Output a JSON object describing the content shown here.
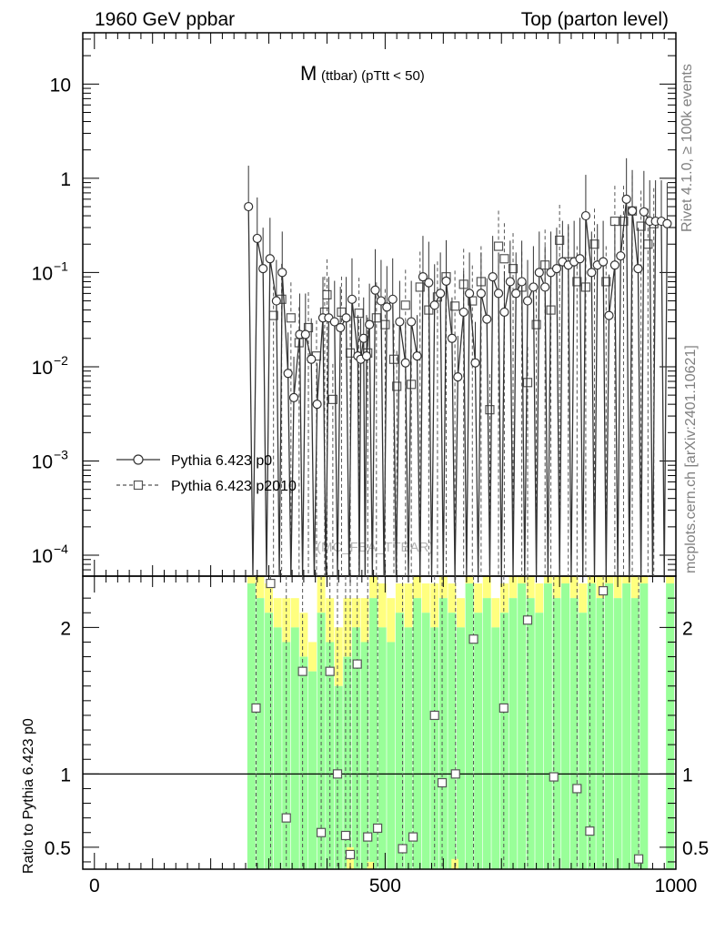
{
  "header": {
    "left": "1960 GeV ppbar",
    "right": "Top (parton level)"
  },
  "side_labels": {
    "rivet": "Rivet 4.1.0, ≥ 100k events",
    "mcplots": "mcplots.cern.ch [arXiv:2401.10621]"
  },
  "chart_data": {
    "type": "line",
    "title_main": "M",
    "title_sub": "(ttbar)  (pTtt < 50)",
    "watermark": "(MC_FBA_TTBAR)",
    "xlim": [
      -20,
      1000
    ],
    "ylim_log": [
      6e-05,
      35
    ],
    "ratio_ylim": [
      0.35,
      2.35
    ],
    "ratio_ylabel": "Ratio to Pythia 6.423 p0",
    "x_ticks": [
      {
        "v": 0,
        "label": "0"
      },
      {
        "v": 500,
        "label": "500"
      },
      {
        "v": 1000,
        "label": "1000"
      }
    ],
    "y_ticks": [
      {
        "v": 10,
        "base": "10",
        "exp": ""
      },
      {
        "v": 1,
        "base": "1",
        "exp": ""
      },
      {
        "v": 0.1,
        "base": "10",
        "exp": "−1"
      },
      {
        "v": 0.01,
        "base": "10",
        "exp": "−2"
      },
      {
        "v": 0.001,
        "base": "10",
        "exp": "−3"
      },
      {
        "v": 0.0001,
        "base": "10",
        "exp": "−4"
      }
    ],
    "ratio_ticks": [
      {
        "v": 2,
        "label": "2"
      },
      {
        "v": 1,
        "label": "1"
      },
      {
        "v": 0.5,
        "label": "0.5"
      }
    ],
    "legend": [
      {
        "name": "Pythia 6.423 p0",
        "marker": "circle",
        "dash": false
      },
      {
        "name": "Pythia 6.423 p2010",
        "marker": "square",
        "dash": true
      }
    ],
    "series": [
      {
        "name": "Pythia 6.423 p0",
        "points": [
          [
            265,
            0.5
          ],
          [
            280,
            0.23
          ],
          [
            290,
            0.11
          ],
          [
            302,
            0.14
          ],
          [
            313,
            0.05
          ],
          [
            323,
            0.1
          ],
          [
            333,
            0.0085
          ],
          [
            343,
            0.0047
          ],
          [
            353,
            0.022
          ],
          [
            363,
            0.022
          ],
          [
            373,
            0.012
          ],
          [
            383,
            0.004
          ],
          [
            393,
            0.033
          ],
          [
            403,
            0.033
          ],
          [
            413,
            0.03
          ],
          [
            423,
            0.026
          ],
          [
            433,
            0.033
          ],
          [
            443,
            0.052
          ],
          [
            453,
            0.013
          ],
          [
            458,
            0.012
          ],
          [
            463,
            0.02
          ],
          [
            468,
            0.013
          ],
          [
            473,
            0.028
          ],
          [
            483,
            0.065
          ],
          [
            493,
            0.05
          ],
          [
            503,
            0.043
          ],
          [
            513,
            0.052
          ],
          [
            525,
            0.03
          ],
          [
            535,
            0.011
          ],
          [
            545,
            0.03
          ],
          [
            555,
            0.013
          ],
          [
            565,
            0.09
          ],
          [
            575,
            0.078
          ],
          [
            585,
            0.045
          ],
          [
            595,
            0.06
          ],
          [
            605,
            0.081
          ],
          [
            615,
            0.02
          ],
          [
            625,
            0.0078
          ],
          [
            635,
            0.038
          ],
          [
            645,
            0.06
          ],
          [
            655,
            0.011
          ],
          [
            665,
            0.06
          ],
          [
            675,
            0.032
          ],
          [
            685,
            0.09
          ],
          [
            695,
            0.06
          ],
          [
            705,
            0.038
          ],
          [
            715,
            0.08
          ],
          [
            725,
            0.06
          ],
          [
            735,
            0.08
          ],
          [
            745,
            0.05
          ],
          [
            755,
            0.07
          ],
          [
            765,
            0.1
          ],
          [
            775,
            0.07
          ],
          [
            785,
            0.1
          ],
          [
            795,
            0.11
          ],
          [
            805,
            0.13
          ],
          [
            815,
            0.12
          ],
          [
            825,
            0.13
          ],
          [
            835,
            0.14
          ],
          [
            845,
            0.4
          ],
          [
            855,
            0.1
          ],
          [
            865,
            0.12
          ],
          [
            875,
            0.13
          ],
          [
            885,
            0.035
          ],
          [
            895,
            0.12
          ],
          [
            905,
            0.15
          ],
          [
            915,
            0.6
          ],
          [
            925,
            0.45
          ],
          [
            935,
            0.11
          ],
          [
            945,
            0.44
          ],
          [
            955,
            0.35
          ],
          [
            965,
            0.35
          ],
          [
            975,
            0.35
          ],
          [
            985,
            0.33
          ]
        ]
      },
      {
        "name": "Pythia 6.423 p2010",
        "points": [
          [
            308,
            0.035
          ],
          [
            322,
            0.052
          ],
          [
            338,
            0.033
          ],
          [
            352,
            0.018
          ],
          [
            368,
            0.026
          ],
          [
            382,
            0.013
          ],
          [
            396,
            0.038
          ],
          [
            400,
            0.058
          ],
          [
            410,
            0.0045
          ],
          [
            425,
            0.038
          ],
          [
            440,
            0.014
          ],
          [
            455,
            0.037
          ],
          [
            470,
            0.014
          ],
          [
            485,
            0.033
          ],
          [
            500,
            0.028
          ],
          [
            515,
            0.012
          ],
          [
            520,
            0.0062
          ],
          [
            535,
            0.045
          ],
          [
            545,
            0.0065
          ],
          [
            560,
            0.07
          ],
          [
            575,
            0.04
          ],
          [
            590,
            0.055
          ],
          [
            605,
            0.09
          ],
          [
            620,
            0.044
          ],
          [
            635,
            0.075
          ],
          [
            650,
            0.05
          ],
          [
            665,
            0.08
          ],
          [
            680,
            0.0035
          ],
          [
            695,
            0.19
          ],
          [
            705,
            0.14
          ],
          [
            720,
            0.11
          ],
          [
            735,
            0.07
          ],
          [
            745,
            0.0068
          ],
          [
            760,
            0.028
          ],
          [
            775,
            0.12
          ],
          [
            785,
            0.04
          ],
          [
            800,
            0.22
          ],
          [
            815,
            0.13
          ],
          [
            830,
            0.08
          ],
          [
            845,
            0.07
          ],
          [
            860,
            0.2
          ],
          [
            880,
            0.08
          ],
          [
            895,
            0.35
          ],
          [
            910,
            0.35
          ],
          [
            925,
            0.45
          ],
          [
            940,
            0.31
          ],
          [
            952,
            0.2
          ],
          [
            962,
            0.33
          ]
        ]
      }
    ],
    "ratio_points": [
      [
        278,
        1.45
      ],
      [
        303,
        2.3
      ],
      [
        330,
        0.7
      ],
      [
        358,
        1.7
      ],
      [
        390,
        0.6
      ],
      [
        405,
        1.7
      ],
      [
        418,
        1.0
      ],
      [
        432,
        0.58
      ],
      [
        440,
        0.45
      ],
      [
        452,
        1.75
      ],
      [
        470,
        0.57
      ],
      [
        487,
        0.63
      ],
      [
        530,
        0.49
      ],
      [
        548,
        0.57
      ],
      [
        585,
        1.4
      ],
      [
        598,
        0.94
      ],
      [
        621,
        1.0
      ],
      [
        652,
        1.92
      ],
      [
        704,
        1.45
      ],
      [
        745,
        2.05
      ],
      [
        790,
        0.98
      ],
      [
        830,
        0.9
      ],
      [
        852,
        0.61
      ],
      [
        875,
        2.25
      ],
      [
        936,
        0.42
      ]
    ],
    "ratio_bands": [
      [
        270,
        2.3,
        0.2
      ],
      [
        285,
        2.2,
        0.2
      ],
      [
        300,
        2.1,
        0.2
      ],
      [
        315,
        2.0,
        0.2
      ],
      [
        330,
        1.9,
        0.3
      ],
      [
        345,
        2.0,
        0.2
      ],
      [
        360,
        1.8,
        0.3
      ],
      [
        375,
        1.7,
        0.2
      ],
      [
        390,
        2.1,
        0.3
      ],
      [
        405,
        1.9,
        0.3
      ],
      [
        420,
        1.6,
        0.4
      ],
      [
        435,
        1.8,
        0.4
      ],
      [
        450,
        2.0,
        0.2
      ],
      [
        465,
        1.9,
        0.3
      ],
      [
        480,
        2.2,
        0.2
      ],
      [
        495,
        2.0,
        0.3
      ],
      [
        510,
        1.9,
        0.3
      ],
      [
        525,
        2.1,
        0.2
      ],
      [
        540,
        2.0,
        0.3
      ],
      [
        555,
        2.2,
        0.2
      ],
      [
        570,
        2.1,
        0.2
      ],
      [
        585,
        2.0,
        0.3
      ],
      [
        600,
        2.2,
        0.2
      ],
      [
        615,
        2.1,
        0.2
      ],
      [
        630,
        2.0,
        0.2
      ],
      [
        645,
        2.3,
        0.2
      ],
      [
        660,
        2.1,
        0.2
      ],
      [
        675,
        2.2,
        0.2
      ],
      [
        690,
        2.0,
        0.2
      ],
      [
        705,
        2.1,
        0.2
      ],
      [
        720,
        2.2,
        0.2
      ],
      [
        735,
        2.3,
        0.1
      ],
      [
        750,
        2.2,
        0.2
      ],
      [
        765,
        2.1,
        0.2
      ],
      [
        780,
        2.3,
        0.1
      ],
      [
        795,
        2.2,
        0.2
      ],
      [
        810,
        2.3,
        0.1
      ],
      [
        825,
        2.2,
        0.2
      ],
      [
        840,
        2.1,
        0.2
      ],
      [
        855,
        2.3,
        0.1
      ],
      [
        870,
        2.2,
        0.2
      ],
      [
        885,
        2.3,
        0.1
      ],
      [
        900,
        2.2,
        0.2
      ],
      [
        915,
        2.3,
        0.1
      ],
      [
        930,
        2.2,
        0.2
      ],
      [
        945,
        2.3,
        0.1
      ],
      [
        990,
        2.3,
        0.1
      ]
    ],
    "colors": {
      "series1": "#333333",
      "series2": "#555555",
      "band_green": "#99ff99",
      "band_yellow": "#ffff7f",
      "axis": "#000000"
    }
  }
}
